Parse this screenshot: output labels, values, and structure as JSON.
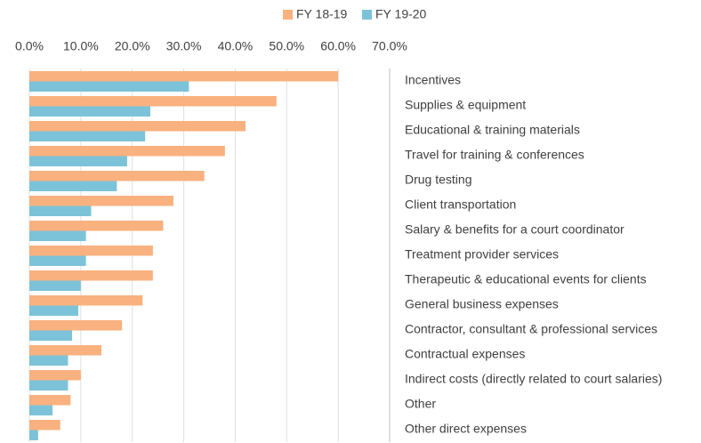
{
  "chart_data": {
    "type": "bar",
    "orientation": "horizontal",
    "categories": [
      "Incentives",
      "Supplies & equipment",
      "Educational & training materials",
      "Travel for training & conferences",
      "Drug testing",
      "Client transportation",
      "Salary & benefits for a court coordinator",
      "Treatment provider services",
      "Therapeutic & educational events for clients",
      "General business expenses",
      "Contractor, consultant & professional services",
      "Contractual expenses",
      "Indirect costs (directly related to court salaries)",
      "Other",
      "Other direct expenses"
    ],
    "series": [
      {
        "name": "FY 18-19",
        "color": "#f8b17f",
        "values": [
          60,
          48,
          42,
          38,
          34,
          28,
          26,
          24,
          24,
          22,
          18,
          14,
          10,
          8,
          6
        ]
      },
      {
        "name": "FY 19-20",
        "color": "#7cc3d9",
        "values": [
          31,
          23.5,
          22.5,
          19,
          17,
          12,
          11,
          11,
          10,
          9.5,
          8.3,
          7.5,
          7.5,
          4.5,
          1.7
        ]
      }
    ],
    "xlim": [
      0,
      70
    ],
    "xticks": [
      {
        "value": 0,
        "label": "0.0%"
      },
      {
        "value": 10,
        "label": "10.0%"
      },
      {
        "value": 20,
        "label": "20.0%"
      },
      {
        "value": 30,
        "label": "30.0%"
      },
      {
        "value": 40,
        "label": "40.0%"
      },
      {
        "value": 50,
        "label": "50.0%"
      },
      {
        "value": 60,
        "label": "60.0%"
      },
      {
        "value": 70,
        "label": "70.0%"
      }
    ],
    "grid": true,
    "legend": "top"
  }
}
